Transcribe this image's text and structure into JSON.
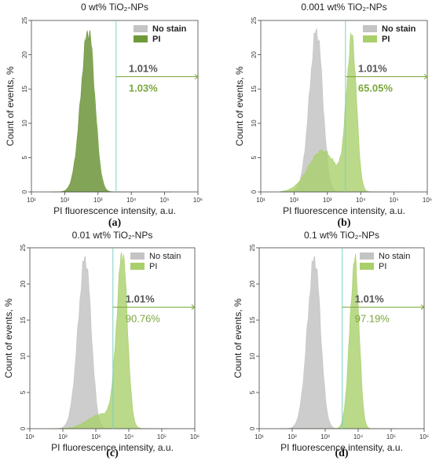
{
  "colors": {
    "no_stain": "#c4c4c4",
    "pi_dark": "#6f9a3a",
    "pi_light": "#a9cf6b",
    "pi_text": "#7aa63c",
    "gate": "#7ccfc2",
    "axis": "#444444"
  },
  "chart_data": [
    {
      "type": "area",
      "panel": "a",
      "caption": "(a)",
      "title": "0 wt% TiO₂-NPs",
      "xlabel": "PI fluorescence intensity, a.u.",
      "ylabel": "Count of events, %",
      "x_scale": "log",
      "xlim": [
        10,
        1000000
      ],
      "ylim": [
        0,
        25
      ],
      "x_ticks": [
        "10¹",
        "10²",
        "10³",
        "10⁴",
        "10⁵",
        "10⁶"
      ],
      "y_ticks": [
        "0",
        "5",
        "10",
        "15",
        "20",
        "25"
      ],
      "legend": [
        "No stain",
        "PI"
      ],
      "legend_position": "top-right",
      "legend_bold": true,
      "gate_x": 3500,
      "gate_y": 16.8,
      "gate_labels": {
        "no_stain": "1.01%",
        "pi": "1.03%",
        "bold": true
      },
      "series": [
        {
          "name": "No stain",
          "peak_x": 500,
          "peak_y": 23.3,
          "width": 0.21
        },
        {
          "name": "PI",
          "peak_x": 520,
          "peak_y": 23.5,
          "width": 0.22
        }
      ]
    },
    {
      "type": "area",
      "panel": "b",
      "caption": "(b)",
      "title": "0.001 wt% TiO₂-NPs",
      "xlabel": "PI fluorescence intensity, a.u.",
      "ylabel": "Count of events, %",
      "x_scale": "log",
      "xlim": [
        10,
        1000000
      ],
      "ylim": [
        0,
        25
      ],
      "x_ticks": [
        "10¹",
        "10²",
        "10³",
        "10⁴",
        "10⁵",
        "10⁶"
      ],
      "y_ticks": [
        "0",
        "5",
        "10",
        "15",
        "20",
        "25"
      ],
      "legend": [
        "No stain",
        "PI"
      ],
      "legend_position": "top-right",
      "legend_bold": true,
      "gate_x": 3500,
      "gate_y": 16.8,
      "gate_labels": {
        "no_stain": "1.01%",
        "pi": "65.05%",
        "bold": true
      },
      "series": [
        {
          "name": "No stain",
          "peak_x": 480,
          "peak_y": 23.5,
          "width": 0.21
        },
        {
          "name": "PI",
          "peak_x": 5500,
          "peak_y": 22.0,
          "width": 0.16,
          "shoulder_x": 700,
          "shoulder_y": 6.0
        }
      ]
    },
    {
      "type": "area",
      "panel": "c",
      "caption": "(c)",
      "title": "0.01 wt% TiO₂-NPs",
      "xlabel": "PI fluorescence intensity, a.u.",
      "ylabel": "Count of events, %",
      "x_scale": "log",
      "xlim": [
        10,
        1000000
      ],
      "ylim": [
        0,
        25
      ],
      "x_ticks": [
        "10¹",
        "10²",
        "10³",
        "10⁴",
        "10⁵",
        "10⁶"
      ],
      "y_ticks": [
        "0",
        "5",
        "10",
        "15",
        "20",
        "25"
      ],
      "legend": [
        "No stain",
        "PI"
      ],
      "legend_position": "top-right",
      "legend_bold": false,
      "gate_x": 3300,
      "gate_y": 16.8,
      "gate_labels": {
        "no_stain": "1.01%",
        "pi": "90.76%",
        "bold": false
      },
      "series": [
        {
          "name": "No stain",
          "peak_x": 480,
          "peak_y": 23.5,
          "width": 0.21
        },
        {
          "name": "PI",
          "peak_x": 6500,
          "peak_y": 23.8,
          "width": 0.17,
          "shoulder_x": 1500,
          "shoulder_y": 2.0
        }
      ]
    },
    {
      "type": "area",
      "panel": "d",
      "caption": "(d)",
      "title": "0.1 wt% TiO₂-NPs",
      "xlabel": "PI fluorescence intensity, a.u.",
      "ylabel": "Count of events, %",
      "x_scale": "log",
      "xlim": [
        10,
        1000000
      ],
      "ylim": [
        0,
        25
      ],
      "x_ticks": [
        "10¹",
        "10²",
        "10³",
        "10⁴",
        "10⁵",
        "10⁶"
      ],
      "y_ticks": [
        "0",
        "5",
        "10",
        "15",
        "20",
        "25"
      ],
      "legend": [
        "No stain",
        "PI"
      ],
      "legend_position": "top-right",
      "legend_bold": false,
      "gate_x": 3300,
      "gate_y": 16.8,
      "gate_labels": {
        "no_stain": "1.01%",
        "pi": "97.19%",
        "bold": false
      },
      "series": [
        {
          "name": "No stain",
          "peak_x": 480,
          "peak_y": 23.5,
          "width": 0.21
        },
        {
          "name": "PI",
          "peak_x": 8000,
          "peak_y": 23.2,
          "width": 0.15
        }
      ]
    }
  ]
}
